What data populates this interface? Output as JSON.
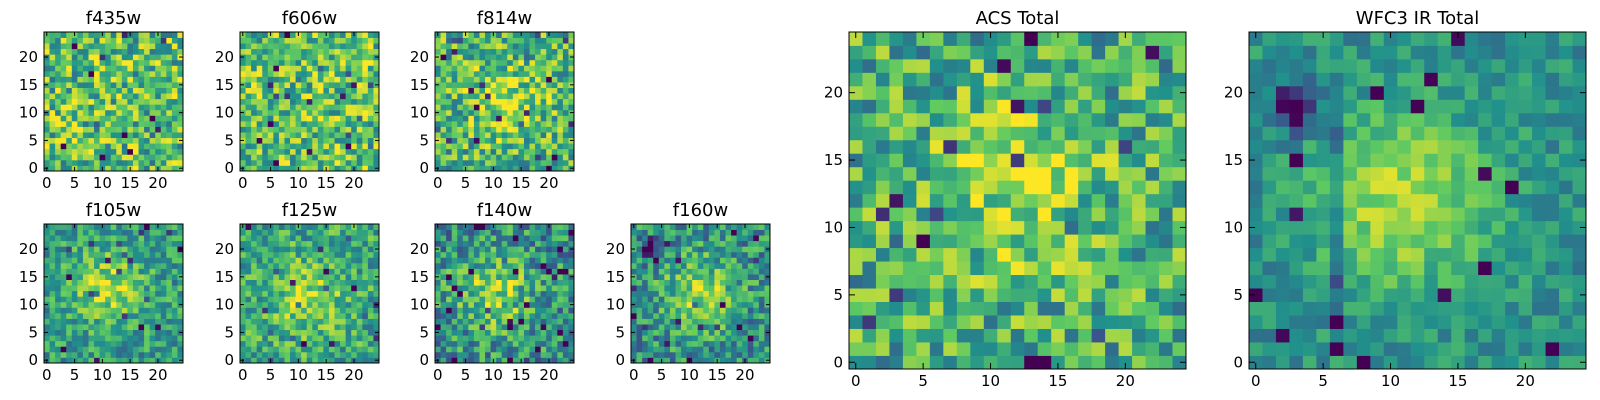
{
  "figure": {
    "description_colormap": "viridis",
    "colormap_stops": [
      "#440154",
      "#3b528b",
      "#21918c",
      "#5ec962",
      "#fde725"
    ]
  },
  "chart_data": [
    {
      "type": "heatmap",
      "id": "f435w",
      "title": "f435w",
      "grid": [
        25,
        25
      ],
      "x_ticks": [
        0,
        5,
        10,
        15,
        20
      ],
      "y_ticks": [
        0,
        5,
        10,
        15,
        20
      ],
      "xlim": [
        -0.5,
        24.5
      ],
      "ylim": [
        -0.5,
        24.5
      ],
      "value_range": [
        0,
        1
      ],
      "pattern": "noise",
      "center_level": 0.7,
      "noise": 0.32,
      "seed": 11
    },
    {
      "type": "heatmap",
      "id": "f606w",
      "title": "f606w",
      "grid": [
        25,
        25
      ],
      "x_ticks": [
        0,
        5,
        10,
        15,
        20
      ],
      "y_ticks": [
        0,
        5,
        10,
        15,
        20
      ],
      "xlim": [
        -0.5,
        24.5
      ],
      "ylim": [
        -0.5,
        24.5
      ],
      "value_range": [
        0,
        1
      ],
      "pattern": "noise",
      "center_level": 0.72,
      "noise": 0.3,
      "seed": 23
    },
    {
      "type": "heatmap",
      "id": "f814w",
      "title": "f814w",
      "grid": [
        25,
        25
      ],
      "x_ticks": [
        0,
        5,
        10,
        15,
        20
      ],
      "y_ticks": [
        0,
        5,
        10,
        15,
        20
      ],
      "xlim": [
        -0.5,
        24.5
      ],
      "ylim": [
        -0.5,
        24.5
      ],
      "value_range": [
        0,
        1
      ],
      "pattern": "blob",
      "blob_center": [
        12,
        12
      ],
      "blob_strength": 0.25,
      "center_level": 0.65,
      "noise": 0.3,
      "seed": 37
    },
    {
      "type": "heatmap",
      "id": "f105w",
      "title": "f105w",
      "grid": [
        25,
        25
      ],
      "x_ticks": [
        0,
        5,
        10,
        15,
        20
      ],
      "y_ticks": [
        0,
        5,
        10,
        15,
        20
      ],
      "xlim": [
        -0.5,
        24.5
      ],
      "ylim": [
        -0.5,
        24.5
      ],
      "value_range": [
        0,
        1
      ],
      "pattern": "blob",
      "blob_center": [
        11,
        13
      ],
      "blob_strength": 0.3,
      "center_level": 0.55,
      "noise": 0.22,
      "seed": 41
    },
    {
      "type": "heatmap",
      "id": "f125w",
      "title": "f125w",
      "grid": [
        25,
        25
      ],
      "x_ticks": [
        0,
        5,
        10,
        15,
        20
      ],
      "y_ticks": [
        0,
        5,
        10,
        15,
        20
      ],
      "xlim": [
        -0.5,
        24.5
      ],
      "ylim": [
        -0.5,
        24.5
      ],
      "value_range": [
        0,
        1
      ],
      "pattern": "blob",
      "blob_center": [
        12,
        11
      ],
      "blob_strength": 0.25,
      "center_level": 0.6,
      "noise": 0.24,
      "seed": 53
    },
    {
      "type": "heatmap",
      "id": "f140w",
      "title": "f140w",
      "grid": [
        25,
        25
      ],
      "x_ticks": [
        0,
        5,
        10,
        15,
        20
      ],
      "y_ticks": [
        0,
        5,
        10,
        15,
        20
      ],
      "xlim": [
        -0.5,
        24.5
      ],
      "ylim": [
        -0.5,
        24.5
      ],
      "value_range": [
        0,
        1
      ],
      "pattern": "blob",
      "blob_center": [
        10,
        12
      ],
      "blob_strength": 0.35,
      "center_level": 0.5,
      "noise": 0.28,
      "seed": 67
    },
    {
      "type": "heatmap",
      "id": "f160w",
      "title": "f160w",
      "grid": [
        25,
        25
      ],
      "x_ticks": [
        0,
        5,
        10,
        15,
        20
      ],
      "y_ticks": [
        0,
        5,
        10,
        15,
        20
      ],
      "xlim": [
        -0.5,
        24.5
      ],
      "ylim": [
        -0.5,
        24.5
      ],
      "value_range": [
        0,
        1
      ],
      "pattern": "blob",
      "blob_center": [
        12,
        12
      ],
      "blob_strength": 0.35,
      "center_level": 0.5,
      "noise": 0.26,
      "dark_spot": [
        3,
        20
      ],
      "seed": 79
    },
    {
      "type": "heatmap",
      "id": "acs-total",
      "title": "ACS Total",
      "grid": [
        25,
        25
      ],
      "x_ticks": [
        0,
        5,
        10,
        15,
        20
      ],
      "y_ticks": [
        0,
        5,
        10,
        15,
        20
      ],
      "xlim": [
        -0.5,
        24.5
      ],
      "ylim": [
        -0.5,
        24.5
      ],
      "value_range": [
        0,
        1
      ],
      "pattern": "blob",
      "blob_center": [
        12,
        13
      ],
      "blob_strength": 0.25,
      "center_level": 0.62,
      "noise": 0.28,
      "seed": 97
    },
    {
      "type": "heatmap",
      "id": "wfc3-ir-total",
      "title": "WFC3 IR Total",
      "grid": [
        25,
        25
      ],
      "x_ticks": [
        0,
        5,
        10,
        15,
        20
      ],
      "y_ticks": [
        0,
        5,
        10,
        15,
        20
      ],
      "xlim": [
        -0.5,
        24.5
      ],
      "ylim": [
        -0.5,
        24.5
      ],
      "value_range": [
        0,
        1
      ],
      "pattern": "blob",
      "blob_center": [
        11,
        12
      ],
      "blob_strength": 0.4,
      "center_level": 0.5,
      "noise": 0.14,
      "dark_spot": [
        3,
        19
      ],
      "dark_column": [
        6,
        18
      ],
      "seed": 113
    }
  ]
}
